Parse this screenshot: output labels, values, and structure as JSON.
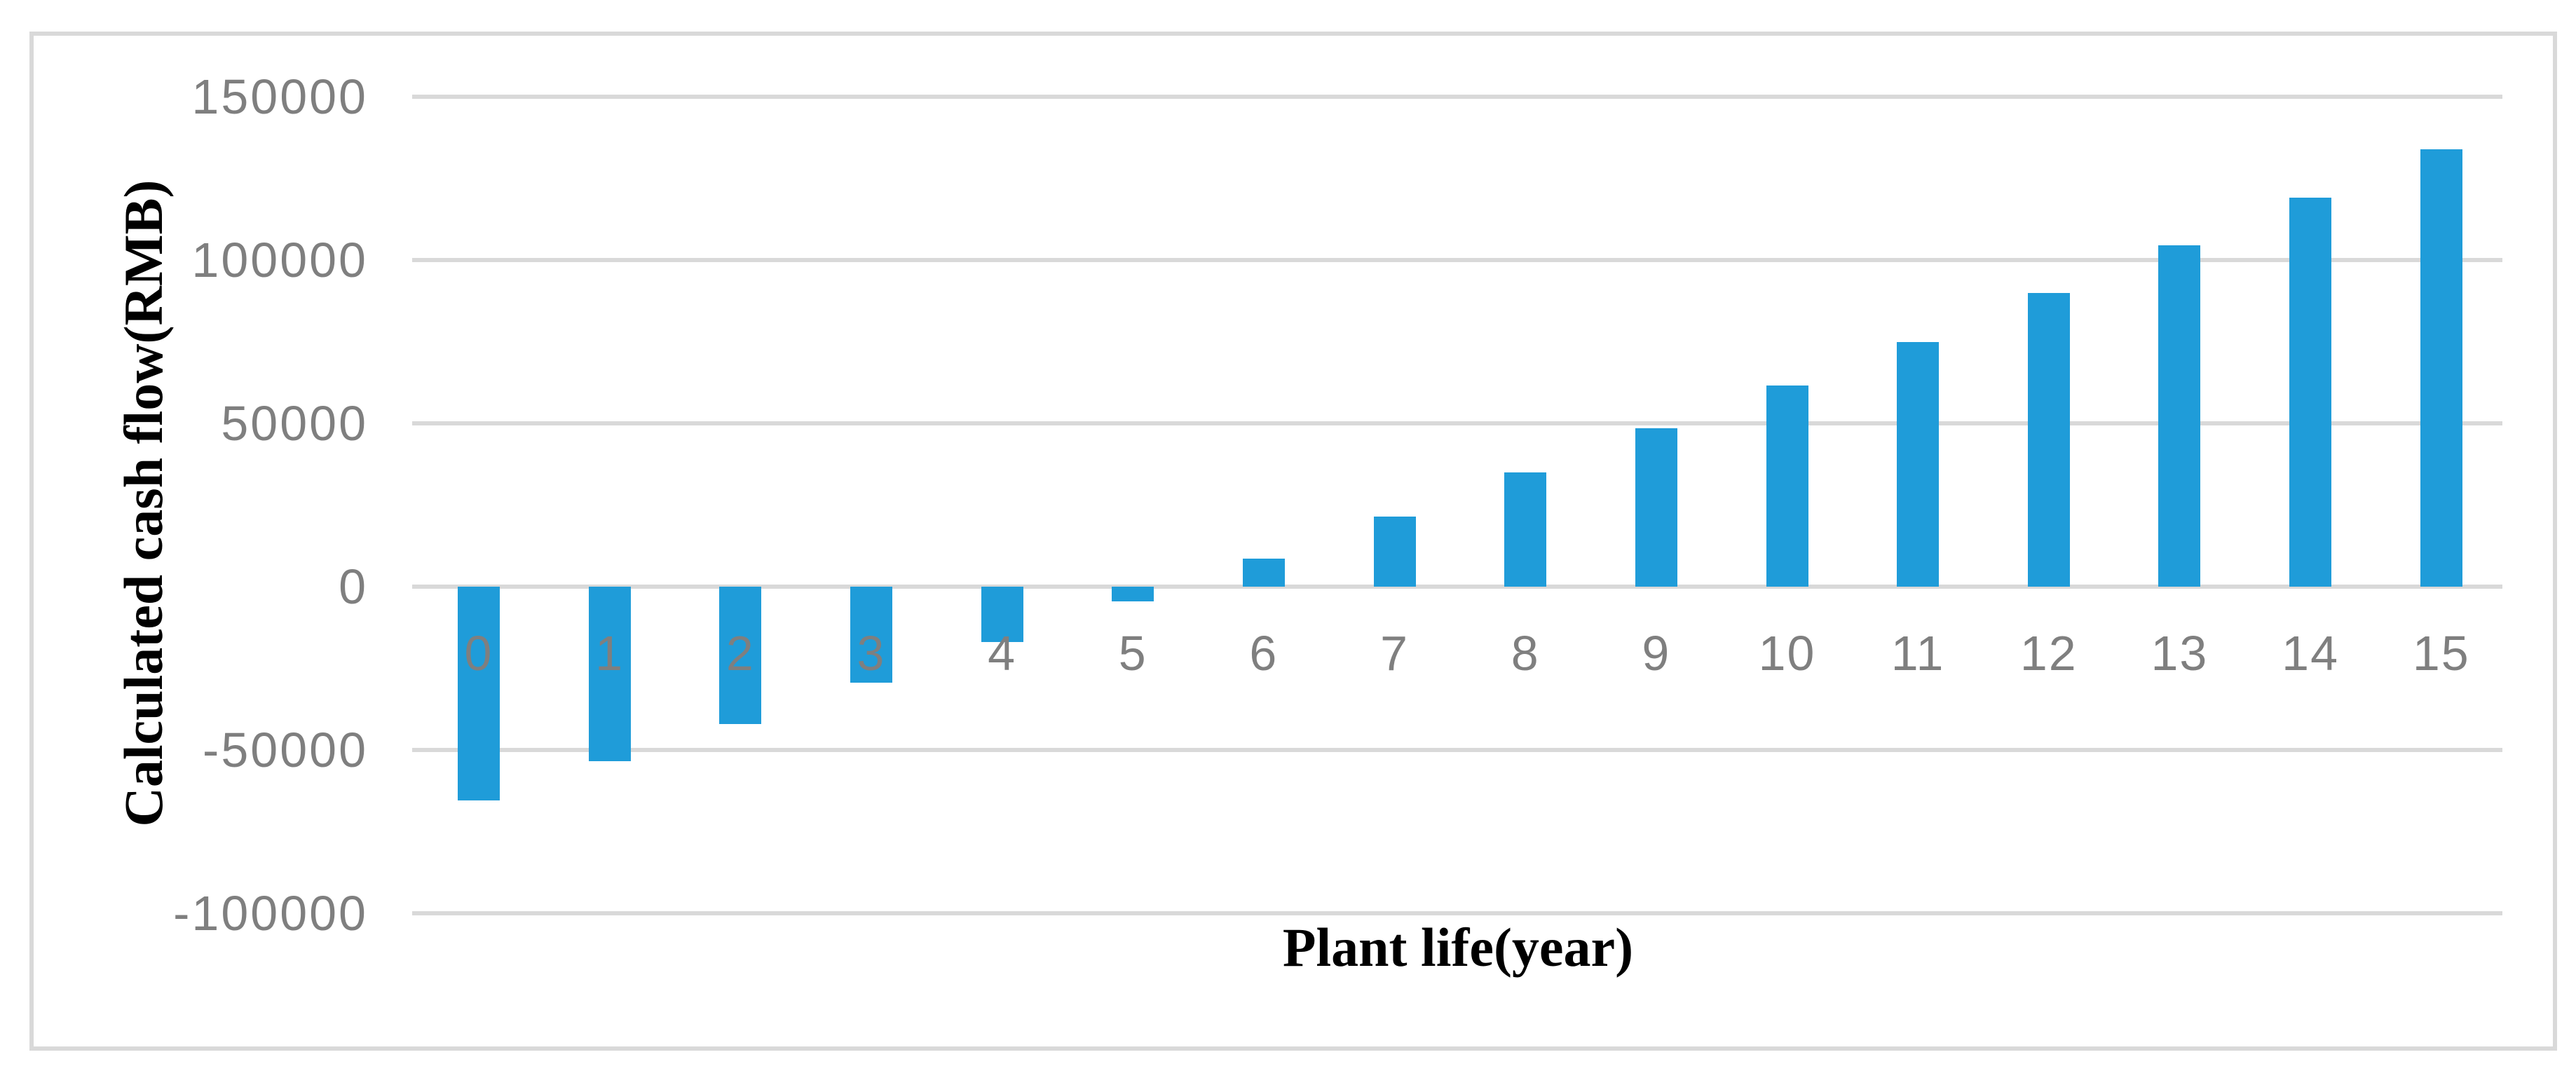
{
  "figure": {
    "background_color": "#ffffff",
    "frame_border_color": "#d9d9d9"
  },
  "chart_data": {
    "type": "bar",
    "title": "",
    "xlabel": "Plant life(year)",
    "ylabel": "Calculated cash flow(RMB)",
    "categories": [
      "0",
      "1",
      "2",
      "3",
      "4",
      "5",
      "6",
      "7",
      "8",
      "9",
      "10",
      "11",
      "12",
      "13",
      "14",
      "15"
    ],
    "values": [
      -65500,
      -53500,
      -42000,
      -29500,
      -17000,
      -4500,
      8500,
      21500,
      35000,
      48500,
      61500,
      75000,
      90000,
      104500,
      119000,
      134000
    ],
    "series_name": "Calculated cash flow",
    "ylim": [
      -100000,
      150000
    ],
    "y_tick_labels": [
      "150000",
      "100000",
      "50000",
      "0",
      "-50000",
      "-100000"
    ],
    "y_tick_values": [
      150000,
      100000,
      50000,
      0,
      -50000,
      -100000
    ],
    "grid": true,
    "legend": false,
    "bar_color": "#1f9cd9",
    "gridline_color": "#d9d9d9",
    "tick_label_color": "#7f7f7f",
    "axis_title_color": "#000000"
  }
}
